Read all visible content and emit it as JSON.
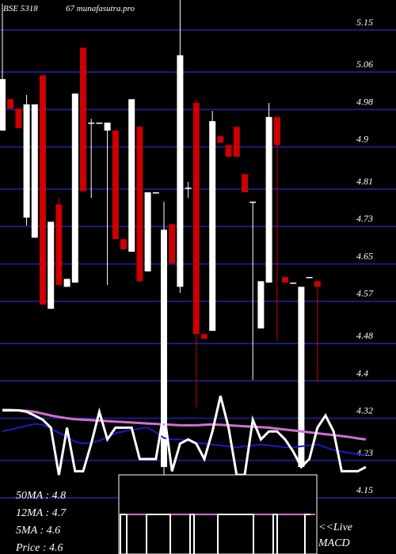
{
  "chart_data": {
    "type": "candlestick",
    "title_left": "BSE 5318",
    "title_right": "67 munafasutra.pro",
    "categories": [
      null,
      null,
      null,
      null,
      null,
      null,
      null,
      null,
      null,
      null,
      null,
      null,
      null,
      null,
      null,
      null,
      null,
      null,
      null,
      null,
      null,
      null,
      null,
      null,
      null,
      null,
      null,
      null,
      null,
      null,
      null,
      null,
      null,
      null,
      null,
      null,
      null,
      null,
      null,
      null,
      null,
      null,
      null,
      null,
      null,
      null
    ],
    "up_color": "#ffffff",
    "down_color": "#cc0000",
    "open": [
      4.935,
      5.002,
      4.982,
      4.749,
      4.706,
      5.053,
      4.554,
      4.777,
      4.601,
      4.61,
      5.112,
      4.952,
      4.952,
      4.935,
      4.935,
      4.703,
      4.676,
      4.943,
      4.634,
      4.803,
      4.216,
      4.735,
      4.601,
      4.813,
      4.994,
      4.5,
      4.507,
      4.923,
      4.904,
      4.943,
      4.842,
      4.783,
      4.512,
      4.61,
      4.964,
      4.622,
      4.61,
      4.216,
      4.622,
      4.613,
      null,
      null,
      null,
      null,
      null,
      null
    ],
    "high": [
      5.206,
      5.002,
      4.982,
      5.011,
      4.991,
      5.053,
      4.74,
      4.791,
      4.618,
      5.014,
      5.112,
      4.96,
      4.952,
      4.952,
      4.935,
      4.703,
      5.002,
      4.943,
      4.803,
      4.803,
      4.783,
      4.735,
      5.214,
      4.825,
      5.002,
      4.5,
      4.977,
      4.923,
      4.904,
      4.943,
      4.842,
      4.783,
      4.613,
      4.994,
      4.964,
      4.622,
      4.61,
      4.601,
      4.622,
      4.613,
      null,
      null,
      null,
      null,
      null,
      null
    ],
    "low": [
      4.935,
      4.982,
      4.94,
      4.732,
      4.706,
      4.563,
      4.554,
      4.605,
      4.601,
      4.61,
      4.805,
      4.791,
      4.952,
      4.605,
      4.703,
      4.681,
      4.676,
      4.613,
      4.634,
      4.803,
      4.199,
      4.651,
      4.588,
      4.791,
      4.343,
      4.49,
      4.507,
      4.909,
      4.879,
      4.879,
      4.803,
      4.402,
      4.512,
      4.61,
      4.486,
      4.61,
      4.61,
      4.216,
      4.622,
      4.398,
      null,
      null,
      null,
      null,
      null,
      null
    ],
    "close": [
      5.045,
      4.982,
      4.94,
      4.991,
      4.991,
      4.563,
      4.74,
      4.605,
      4.618,
      5.014,
      4.805,
      4.952,
      4.952,
      4.952,
      4.703,
      4.681,
      5.002,
      4.613,
      4.803,
      4.803,
      4.723,
      4.651,
      5.096,
      4.813,
      4.5,
      4.49,
      4.955,
      4.909,
      4.879,
      4.879,
      4.803,
      4.783,
      4.613,
      4.964,
      4.904,
      4.61,
      4.61,
      4.601,
      4.622,
      4.601,
      null,
      null,
      null,
      null,
      null,
      null
    ],
    "series": [
      {
        "name": "50MA",
        "color": "#d070d0",
        "width": 3,
        "stat": 4.8,
        "values": [
          4.338,
          4.338,
          4.337,
          4.336,
          4.334,
          4.33,
          4.326,
          4.323,
          4.32,
          4.318,
          4.317,
          4.316,
          4.315,
          4.314,
          4.313,
          4.312,
          4.311,
          4.31,
          4.309,
          4.308,
          4.307,
          4.306,
          4.305,
          4.305,
          4.305,
          4.306,
          4.307,
          4.306,
          4.305,
          4.304,
          4.303,
          4.302,
          4.301,
          4.3,
          4.298,
          4.296,
          4.294,
          4.292,
          4.29,
          4.288,
          4.286,
          4.284,
          4.282,
          4.28,
          4.277,
          4.275
        ]
      },
      {
        "name": "12MA",
        "color": "#1a1acc",
        "width": 2,
        "stat": 4.7,
        "values": [
          4.292,
          4.296,
          4.3,
          4.304,
          4.308,
          4.306,
          4.298,
          4.289,
          4.28,
          4.27,
          4.266,
          4.268,
          4.272,
          4.28,
          4.288,
          4.292,
          4.295,
          4.298,
          4.3,
          4.29,
          4.278,
          4.275,
          4.275,
          4.272,
          4.268,
          4.266,
          4.264,
          4.262,
          4.26,
          4.258,
          4.26,
          4.262,
          4.264,
          4.262,
          4.26,
          4.258,
          4.258,
          4.26,
          4.262,
          4.264,
          4.258,
          4.252,
          4.249,
          4.246,
          4.243,
          4.241
        ]
      },
      {
        "name": "5MA",
        "color": "#ffffff",
        "width": 3,
        "stat": 4.6,
        "values": [
          4.337,
          4.337,
          4.337,
          4.334,
          4.326,
          4.317,
          4.3,
          4.199,
          4.3,
          4.207,
          4.207,
          4.266,
          4.334,
          4.275,
          4.3,
          4.3,
          4.3,
          4.233,
          4.233,
          4.233,
          4.334,
          4.207,
          4.266,
          4.275,
          4.266,
          4.233,
          4.292,
          4.368,
          4.3,
          4.199,
          4.199,
          4.317,
          4.275,
          4.292,
          4.292,
          4.275,
          4.249,
          4.216,
          4.233,
          4.3,
          4.326,
          4.292,
          4.207,
          4.207,
          4.207,
          4.216
        ]
      }
    ],
    "price_label": "Price",
    "price": 4.6,
    "live_label": "<<Live",
    "macd_label": "MACD",
    "ylim": [
      4.03,
      5.214
    ],
    "yticks": [
      5.15,
      5.06,
      4.98,
      4.9,
      4.81,
      4.73,
      4.65,
      4.57,
      4.48,
      4.4,
      4.32,
      4.23,
      4.15
    ],
    "grid": true,
    "grid_color": "#1c1c80"
  }
}
